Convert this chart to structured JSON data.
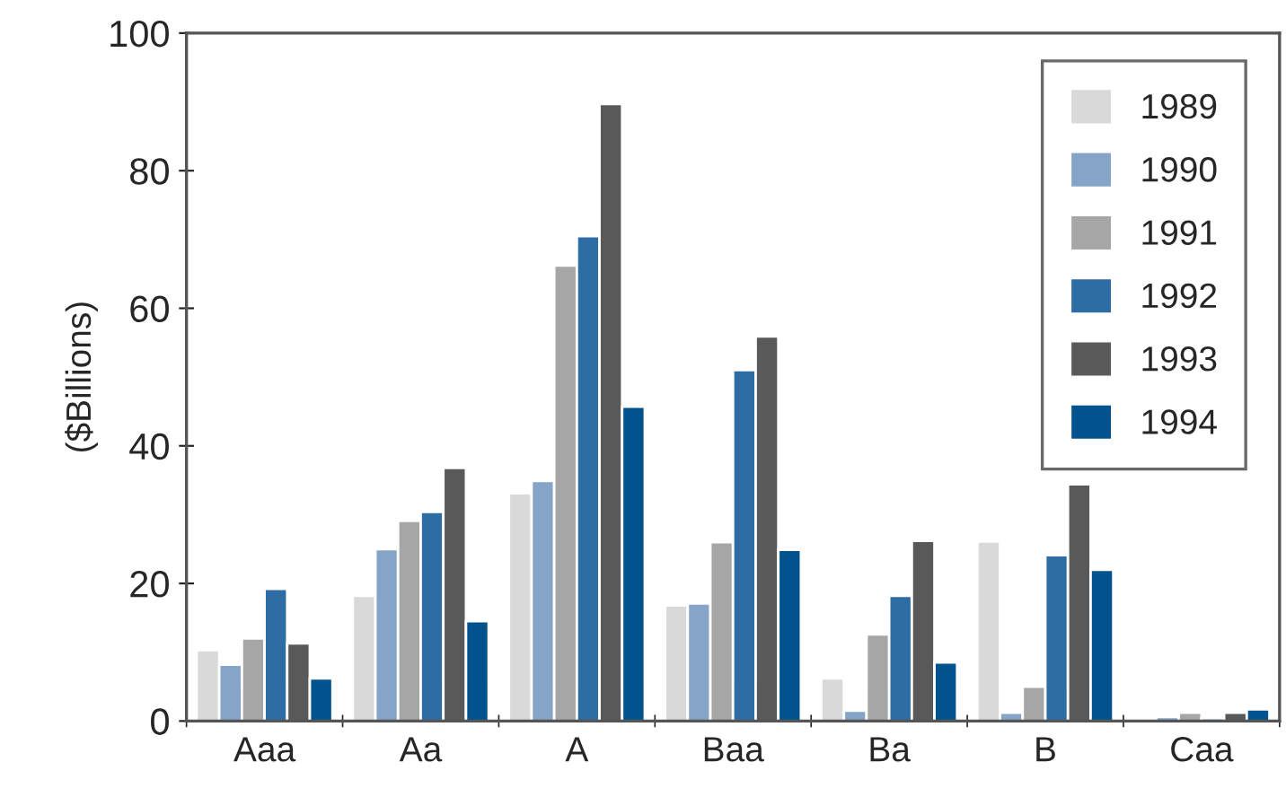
{
  "chart_data": {
    "type": "bar",
    "ylabel": "($Billions)",
    "categories": [
      "Aaa",
      "Aa",
      "A",
      "Baa",
      "Ba",
      "B",
      "Caa"
    ],
    "series": [
      {
        "name": "1989",
        "color": "#d9d9d9",
        "values": [
          10.3,
          18.2,
          33.1,
          16.8,
          6.2,
          26.1,
          null
        ]
      },
      {
        "name": "1990",
        "color": "#86a4c8",
        "values": [
          8.2,
          25,
          34.9,
          17.1,
          1.5,
          1.2,
          0.6
        ]
      },
      {
        "name": "1991",
        "color": "#a6a6a6",
        "values": [
          12.0,
          29.1,
          66.2,
          26.0,
          12.6,
          5.0,
          1.2
        ]
      },
      {
        "name": "1992",
        "color": "#2e6ca4",
        "values": [
          19.2,
          30.4,
          70.5,
          51.0,
          18.2,
          24.1,
          0.4
        ]
      },
      {
        "name": "1993",
        "color": "#595959",
        "values": [
          11.3,
          36.8,
          89.7,
          55.9,
          26.2,
          34.4,
          1.2
        ]
      },
      {
        "name": "1994",
        "color": "#02538d",
        "values": [
          6.2,
          14.5,
          45.7,
          24.9,
          8.5,
          22.0,
          1.7
        ]
      }
    ],
    "ylim": [
      0,
      100
    ],
    "yticks": [
      0,
      20,
      40,
      60,
      80,
      100
    ],
    "grid": false,
    "legend": "top right"
  }
}
